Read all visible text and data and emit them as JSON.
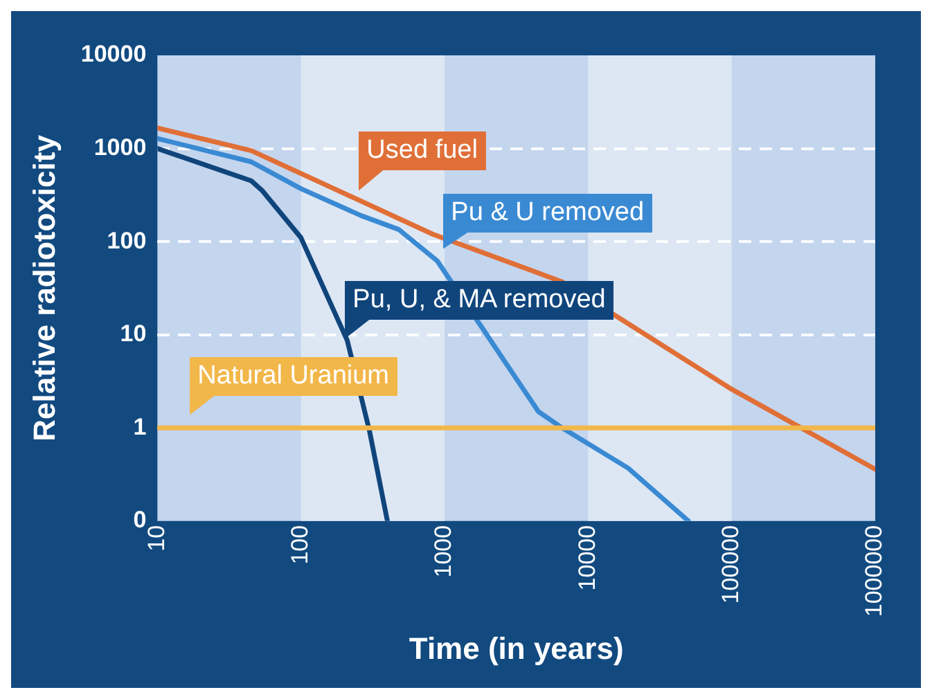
{
  "chart_data": {
    "type": "line",
    "xlabel": "Time (in years)",
    "ylabel": "Relative radiotoxicity",
    "log": "xy",
    "grid": "y",
    "legend": false,
    "marker": "none",
    "xlim": [
      10,
      1000000
    ],
    "xticks": [
      10,
      100,
      1000,
      10000,
      100000,
      1000000
    ],
    "ylim": [
      0.1,
      10000
    ],
    "yticks": [
      {
        "value": 0.1,
        "label": "0"
      },
      1,
      10,
      100,
      1000,
      10000
    ],
    "bands": [
      {
        "axis": "x",
        "from": 100,
        "to": 1000,
        "color": "#dde7f4"
      },
      {
        "axis": "x",
        "from": 10000,
        "to": 100000,
        "color": "#dde7f4"
      }
    ],
    "series": [
      {
        "name": "Used fuel",
        "color": "#e06f37",
        "x": [
          10,
          45,
          830,
          6600,
          100000,
          1000000
        ],
        "values": [
          1660,
          950,
          120,
          37,
          2.6,
          0.36
        ]
      },
      {
        "name": "Pu & U removed",
        "color": "#3a8ad3",
        "x": [
          10,
          45,
          100,
          263,
          480,
          890,
          1780,
          4500,
          6600,
          19000,
          50000
        ],
        "values": [
          1280,
          720,
          370,
          190,
          135,
          62,
          null,
          1.5,
          1.0,
          0.37,
          0.1
        ]
      },
      {
        "name": "Pu, U, & MA removed",
        "color": "#10457c",
        "x": [
          10,
          45,
          54,
          100,
          210,
          300,
          400
        ],
        "values": [
          1000,
          450,
          350,
          110,
          8.7,
          0.93,
          0.1
        ]
      },
      {
        "name": "Natural Uranium",
        "color": "#f2b749",
        "x": [
          10,
          1000000
        ],
        "values": [
          1,
          1
        ]
      }
    ]
  }
}
